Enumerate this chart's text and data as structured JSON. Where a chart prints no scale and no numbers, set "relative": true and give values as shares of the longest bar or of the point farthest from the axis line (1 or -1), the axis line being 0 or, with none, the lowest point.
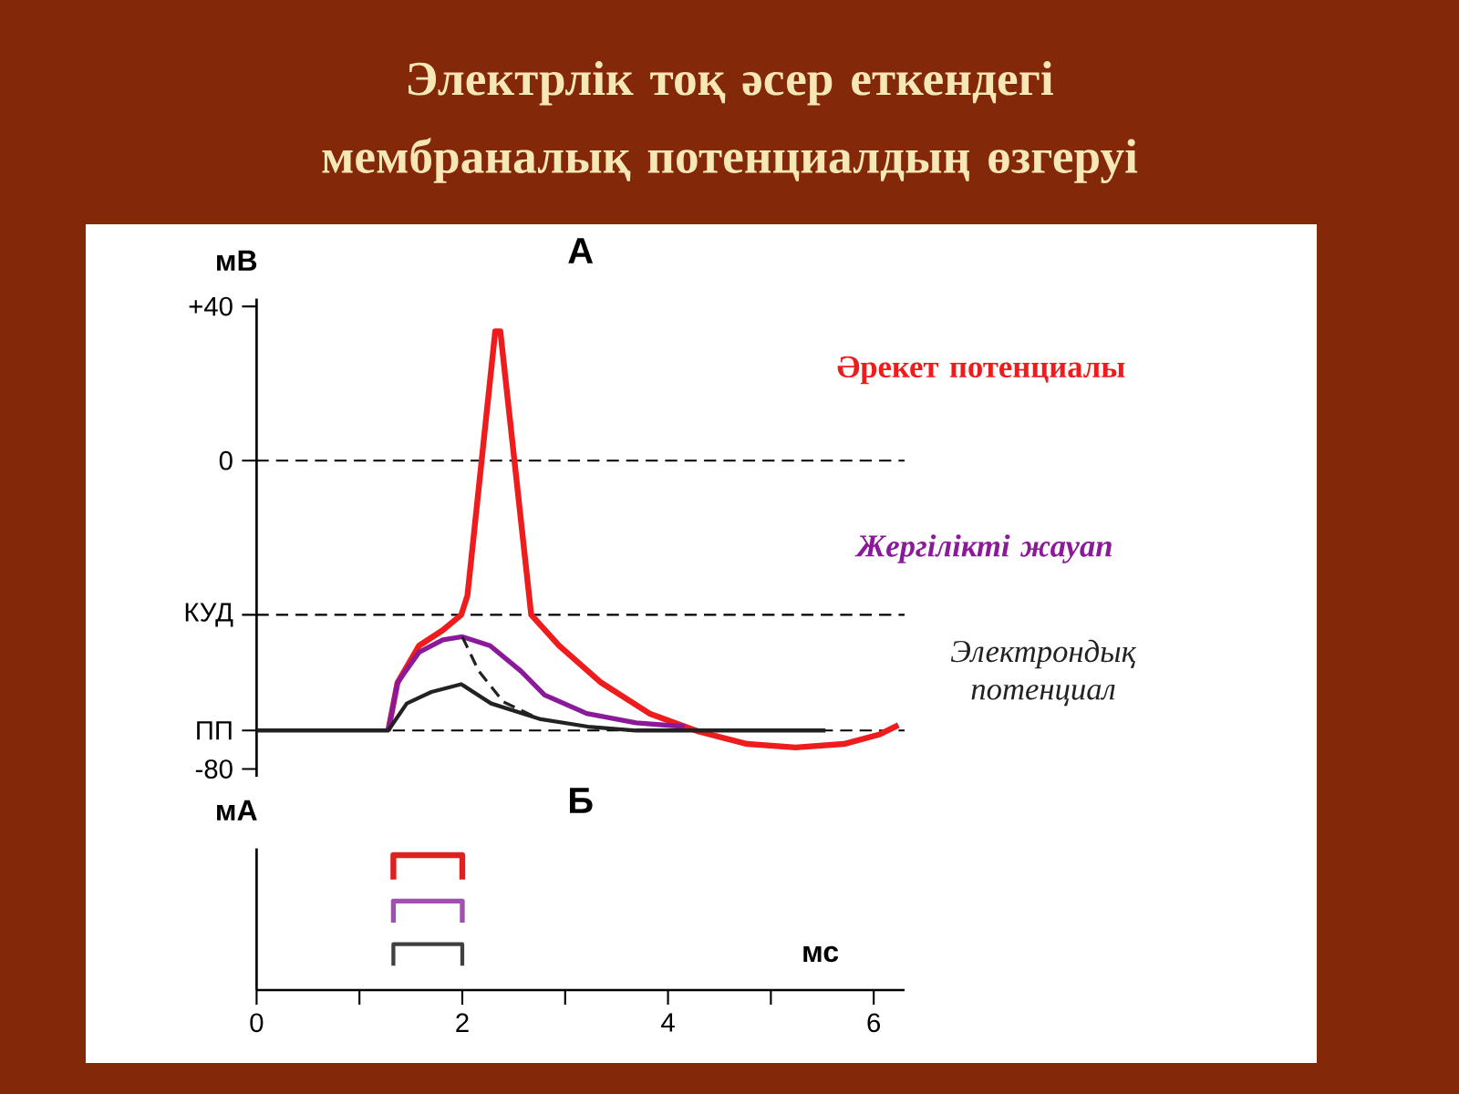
{
  "chart_data": [
    {
      "type": "line",
      "title": "Электрлік тоқ әсер еткендегі мембраналық потенциалдың өзгеруі",
      "subtitle": "А",
      "ylabel": "мВ",
      "xlim": [
        0,
        6.3
      ],
      "ylim": [
        -82,
        42
      ],
      "tick_labels": "y",
      "yticks": [
        {
          "value": 40,
          "label": "+40"
        },
        0,
        {
          "value": -40,
          "label": "КУД"
        },
        {
          "value": -70,
          "label": "ПП"
        },
        -80
      ],
      "ref_lines": [
        {
          "axis": "y",
          "value": 0,
          "line_style": "dashed"
        },
        {
          "axis": "y",
          "value": -40,
          "line_style": "dashed"
        },
        {
          "axis": "y",
          "value": -70,
          "line_style": "dashed"
        }
      ],
      "series": [
        {
          "name": "Әрекет потенциалы",
          "color": "#ee1c1c",
          "x": [
            1.28,
            1.37,
            1.58,
            1.81,
            1.99,
            2.05,
            2.32,
            2.37,
            2.67,
            2.94,
            3.35,
            3.82,
            4.3,
            4.77,
            5.24,
            5.71,
            6.06,
            6.24
          ],
          "values": [
            -70,
            -57.6,
            -48,
            -44,
            -40,
            -35,
            33.5,
            33.5,
            -40,
            -48,
            -57.6,
            -65.6,
            -70.3,
            -73.5,
            -74.4,
            -73.5,
            -71,
            -68.6
          ]
        },
        {
          "name": "Жергілікті жауап",
          "color": "#8b1a9a",
          "x": [
            1.28,
            1.37,
            1.58,
            1.81,
            2.0,
            2.27,
            2.57,
            2.8,
            3.21,
            3.69,
            4.16
          ],
          "values": [
            -70,
            -57.6,
            -49.7,
            -46.5,
            -45.7,
            -48,
            -54.6,
            -60.8,
            -65.6,
            -68,
            -69
          ]
        },
        {
          "name": "Электрондық потенциал",
          "color": "#222222",
          "x": [
            0,
            1.28,
            1.46,
            1.7,
            1.99,
            2.28,
            2.75,
            3.22,
            3.69,
            5.53
          ],
          "values": [
            -70,
            -70,
            -63,
            -60,
            -58,
            -63,
            -67,
            -69,
            -70,
            -70
          ]
        },
        {
          "color": "#222222",
          "line_style": "dashed",
          "x": [
            2.0,
            2.16,
            2.4,
            2.75
          ],
          "values": [
            -45.7,
            -54.6,
            -62.6,
            -67
          ]
        }
      ]
    },
    {
      "type": "line",
      "title": "Б",
      "ylabel": "мА",
      "xlabel": "мс",
      "relative": true,
      "xlim": [
        0,
        6.3
      ],
      "tick_labels": "x",
      "xticks": [
        0,
        {
          "value": 1,
          "label": null
        },
        2,
        {
          "value": 3,
          "label": null
        },
        4,
        {
          "value": 5,
          "label": null
        },
        6
      ],
      "series": [
        {
          "color": "#e02020",
          "x": [
            1.33,
            1.33,
            2.0,
            2.0
          ],
          "values": [
            0.82,
            1,
            1,
            0.82
          ]
        },
        {
          "color": "#a050b0",
          "x": [
            1.33,
            1.33,
            2.0,
            2.0
          ],
          "values": [
            0.5,
            0.66,
            0.66,
            0.5
          ]
        },
        {
          "color": "#404040",
          "x": [
            1.33,
            1.33,
            2.0,
            2.0
          ],
          "values": [
            0.18,
            0.34,
            0.34,
            0.18
          ]
        }
      ]
    }
  ]
}
